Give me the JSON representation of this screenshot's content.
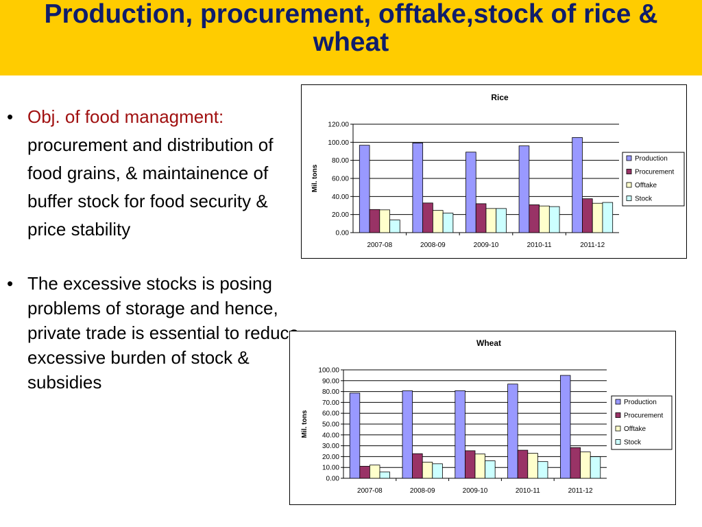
{
  "slide": {
    "title": "Production, procurement, offtake,stock of rice & wheat",
    "bullets": [
      {
        "lead": "Obj. of food managment:",
        "text": " procurement and distribution of food grains, & maintainence of buffer stock for food security & price stability"
      },
      {
        "lead": "",
        "text": "The excessive stocks is posing problems of storage and hence, private trade is essential to reduce excessive burden of stock & subsidies"
      }
    ]
  },
  "colors": {
    "title_bg": "#ffcc00",
    "title_text": "#0f1d6b",
    "lead_text": "#a01010"
  },
  "chart_data": [
    {
      "type": "bar",
      "title": "Rice",
      "ylabel": "Mil. tons",
      "xlabel": "",
      "categories": [
        "2007-08",
        "2008-09",
        "2009-10",
        "2010-11",
        "2011-12"
      ],
      "ylim": [
        0,
        120
      ],
      "ytick_step": 20,
      "yticks": [
        "0.00",
        "20.00",
        "40.00",
        "60.00",
        "80.00",
        "100.00",
        "120.00"
      ],
      "legend_position": "right",
      "grid": true,
      "series": [
        {
          "name": "Production",
          "color": "#9999ff",
          "values": [
            96.7,
            99.2,
            89.1,
            96.0,
            105.3
          ]
        },
        {
          "name": "Procurement",
          "color": "#993366",
          "values": [
            25.6,
            32.8,
            32.0,
            30.8,
            37.5
          ]
        },
        {
          "name": "Offtake",
          "color": "#ffffcc",
          "values": [
            25.2,
            24.6,
            26.7,
            29.5,
            32.5
          ]
        },
        {
          "name": "Stock",
          "color": "#ccffff",
          "values": [
            14.0,
            21.6,
            26.7,
            28.8,
            33.4
          ]
        }
      ]
    },
    {
      "type": "bar",
      "title": "Wheat",
      "ylabel": "Mil. tons",
      "xlabel": "",
      "categories": [
        "2007-08",
        "2008-09",
        "2009-10",
        "2010-11",
        "2011-12"
      ],
      "ylim": [
        0,
        100
      ],
      "ytick_step": 10,
      "yticks": [
        "0.00",
        "10.00",
        "20.00",
        "30.00",
        "40.00",
        "50.00",
        "60.00",
        "70.00",
        "80.00",
        "90.00",
        "100.00"
      ],
      "legend_position": "right",
      "grid": true,
      "series": [
        {
          "name": "Production",
          "color": "#9999ff",
          "values": [
            78.6,
            80.7,
            80.8,
            86.9,
            94.9
          ]
        },
        {
          "name": "Procurement",
          "color": "#993366",
          "values": [
            11.1,
            22.7,
            25.4,
            25.9,
            28.3
          ]
        },
        {
          "name": "Offtake",
          "color": "#ffffcc",
          "values": [
            12.2,
            14.9,
            22.4,
            23.1,
            24.3
          ]
        },
        {
          "name": "Stock",
          "color": "#ccffff",
          "values": [
            5.8,
            13.4,
            16.1,
            15.4,
            19.9
          ]
        }
      ]
    }
  ]
}
